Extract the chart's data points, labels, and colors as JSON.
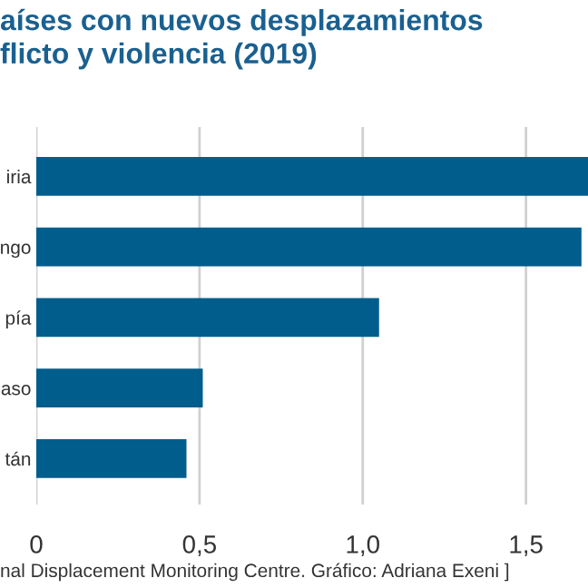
{
  "chart_data": {
    "type": "bar",
    "orientation": "horizontal",
    "title": "aíses con nuevos desplazamientos\nflicto y violencia (2019)",
    "categories": [
      "iria",
      "ngo",
      "pía",
      "aso",
      "tán"
    ],
    "values": [
      1.69,
      1.67,
      1.05,
      0.51,
      0.46
    ],
    "color": "#005d8c",
    "xlim": [
      0,
      1.69
    ],
    "xticks": [
      0,
      {
        "value": 0.5,
        "label": "0,5"
      },
      {
        "value": 1.0,
        "label": "1,0"
      },
      {
        "value": 1.5,
        "label": "1,5"
      }
    ],
    "grid": "x",
    "annotations": [
      "nal Displacement Monitoring Centre. Gráfico: Adriana Exeni ]"
    ]
  }
}
